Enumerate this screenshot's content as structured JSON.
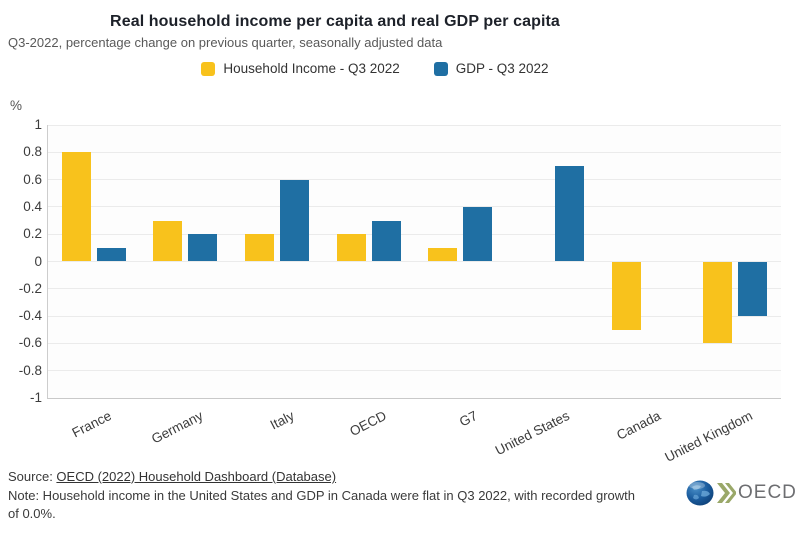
{
  "header": {
    "title": "Real household income per capita and real GDP per capita",
    "subtitle": "Q3-2022, percentage change on previous quarter, seasonally adjusted data"
  },
  "legend": {
    "items": [
      {
        "label": "Household Income - Q3 2022",
        "color": "#F8C21C"
      },
      {
        "label": "GDP - Q3 2022",
        "color": "#1F6FA3"
      }
    ]
  },
  "chart_data": {
    "type": "bar",
    "title": "Real household income per capita and real GDP per capita",
    "subtitle": "Q3-2022, percentage change on previous quarter, seasonally adjusted data",
    "xlabel": "",
    "ylabel": "%",
    "categories": [
      "France",
      "Germany",
      "Italy",
      "OECD",
      "G7",
      "United States",
      "Canada",
      "United Kingdom"
    ],
    "series": [
      {
        "name": "Household Income - Q3 2022",
        "color": "#F8C21C",
        "values": [
          0.8,
          0.3,
          0.2,
          0.2,
          0.1,
          0.0,
          -0.5,
          -0.6
        ]
      },
      {
        "name": "GDP - Q3 2022",
        "color": "#1F6FA3",
        "values": [
          0.1,
          0.2,
          0.6,
          0.3,
          0.4,
          0.7,
          0.0,
          -0.4
        ]
      }
    ],
    "ylim": [
      -1,
      1
    ],
    "yticks": [
      1,
      0.8,
      0.6,
      0.4,
      0.2,
      0,
      -0.2,
      -0.4,
      -0.6,
      -0.8,
      -1
    ],
    "grid": true,
    "legend_position": "top",
    "note_on_zero_values": "Bars with 0.0 growth are not drawn"
  },
  "footer": {
    "source_prefix": "Source: ",
    "source_link": "OECD (2022) Household Dashboard (Database)",
    "note": "Note: Household income in the United States and GDP in Canada were flat in Q3 2022, with recorded growth of 0.0%.",
    "logo_text": "OECD"
  }
}
